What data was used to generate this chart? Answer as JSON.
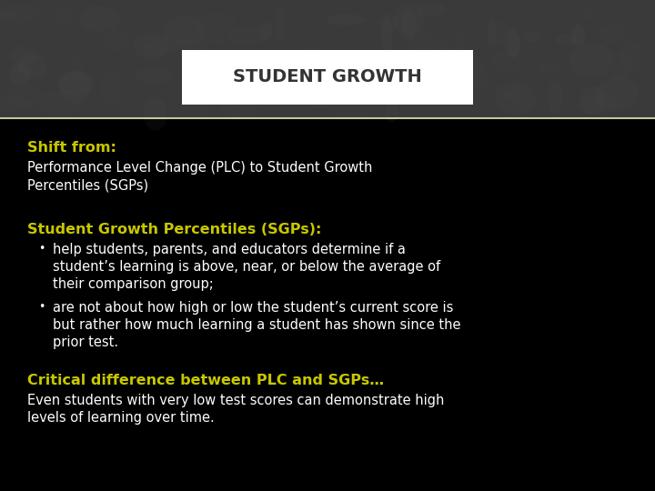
{
  "title": "STUDENT GROWTH",
  "bg_color": "#000000",
  "header_bg_dark": "#3a3a3a",
  "header_bg_darker": "#2a2a2a",
  "title_box_color": "#ffffff",
  "title_text_color": "#333333",
  "yellow_color": "#c8c800",
  "white_color": "#ffffff",
  "separator_color": "#c8c8a0",
  "shift_from_label": "Shift from:",
  "shift_from_body": "Performance Level Change (PLC) to Student Growth\nPercentiles (SGPs)",
  "sgp_header": "Student Growth Percentiles (SGPs):",
  "bullet1_text": "help students, parents, and educators determine if a\nstudent’s learning is above, near, or below the average of\ntheir comparison group;",
  "bullet2_text": "are not about how high or low the student’s current score is\nbut rather how much learning a student has shown since the\nprior test.",
  "critical_header": "Critical difference between PLC and SGPs…",
  "critical_body": "Even students with very low test scores can demonstrate high\nlevels of learning over time.",
  "fig_width": 7.2,
  "fig_height": 5.4,
  "dpi": 100
}
